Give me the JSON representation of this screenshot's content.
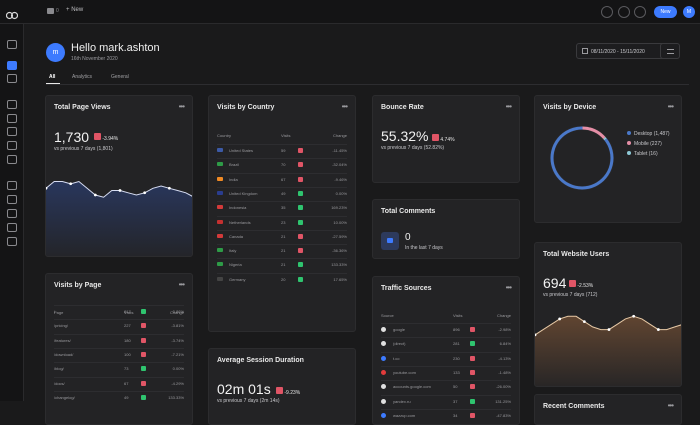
{
  "topbar": {
    "new_label": "New",
    "new_button": "New",
    "user_initial": "M"
  },
  "header": {
    "avatar_initial": "m",
    "greeting": "Hello mark.ashton",
    "date": "16th November 2020",
    "tabs": [
      "All",
      "Analytics",
      "General"
    ],
    "date_range": "08/11/2020 - 15/11/2020"
  },
  "page_views": {
    "title": "Total Page Views",
    "value": "1,730",
    "change": "-3.94%",
    "sub": "vs previous 7 days (1,801)"
  },
  "visits_country": {
    "title": "Visits by Country",
    "headers": [
      "Country",
      "Visits",
      "Change"
    ],
    "rows": [
      {
        "name": "United States",
        "visits": "59",
        "change": "-11.45%",
        "up": false,
        "flag": "#3c5aa6"
      },
      {
        "name": "Brazil",
        "visits": "70",
        "change": "-32.04%",
        "up": false,
        "flag": "#2e9b47"
      },
      {
        "name": "India",
        "visits": "67",
        "change": "-9.46%",
        "up": false,
        "flag": "#f08a24"
      },
      {
        "name": "United Kingdom",
        "visits": "49",
        "change": "0.00%",
        "up": true,
        "flag": "#2a3d8f"
      },
      {
        "name": "Indonesia",
        "visits": "35",
        "change": "169.23%",
        "up": true,
        "flag": "#d33a3a"
      },
      {
        "name": "Netherlands",
        "visits": "23",
        "change": "10.00%",
        "up": true,
        "flag": "#c43030"
      },
      {
        "name": "Canada",
        "visits": "21",
        "change": "-27.59%",
        "up": false,
        "flag": "#d33a3a"
      },
      {
        "name": "Italy",
        "visits": "21",
        "change": "-36.36%",
        "up": false,
        "flag": "#2e9b47"
      },
      {
        "name": "Nigeria",
        "visits": "21",
        "change": "133.33%",
        "up": true,
        "flag": "#2e9b47"
      },
      {
        "name": "Germany",
        "visits": "20",
        "change": "17.65%",
        "up": true,
        "flag": "#444"
      }
    ]
  },
  "bounce": {
    "title": "Bounce Rate",
    "value": "55.32%",
    "change": "4.74%",
    "sub": "vs previous 7 days (52.82%)"
  },
  "comments": {
    "title": "Total Comments",
    "value": "0",
    "sub": "In the last 7 days"
  },
  "traffic": {
    "title": "Traffic Sources",
    "headers": [
      "Source",
      "Visits",
      "Change"
    ],
    "rows": [
      {
        "name": "google",
        "visits": "896",
        "change": "-2.98%",
        "up": false,
        "dot": "#e0e0e0"
      },
      {
        "name": "(direct)",
        "visits": "281",
        "change": "6.84%",
        "up": true,
        "dot": "#e0e0e0"
      },
      {
        "name": "t.co",
        "visits": "230",
        "change": "-4.13%",
        "up": false,
        "dot": "#3d7bff"
      },
      {
        "name": "youtube.com",
        "visits": "133",
        "change": "-1.48%",
        "up": false,
        "dot": "#e23b3b"
      },
      {
        "name": "accounts.google.com",
        "visits": "50",
        "change": "-26.00%",
        "up": false,
        "dot": "#e0e0e0"
      },
      {
        "name": "yandex.ru",
        "visits": "37",
        "change": "131.25%",
        "up": true,
        "dot": "#e0e0e0"
      },
      {
        "name": "wazzup.com",
        "visits": "34",
        "change": "-47.83%",
        "up": false,
        "dot": "#3d7bff"
      }
    ]
  },
  "device": {
    "title": "Visits by Device",
    "legend": [
      {
        "label": "Desktop (1,487)",
        "value": 1487,
        "color": "#4a78c9"
      },
      {
        "label": "Mobile (227)",
        "value": 227,
        "color": "#e58ea6"
      },
      {
        "label": "Tablet (16)",
        "value": 16,
        "color": "#8ec9d6"
      }
    ]
  },
  "users": {
    "title": "Total Website Users",
    "value": "694",
    "change": "-2.53%",
    "sub": "vs previous 7 days (712)"
  },
  "visits_page": {
    "title": "Visits by Page",
    "headers": [
      "Page",
      "Visits",
      "Change"
    ],
    "rows": [
      {
        "name": "/",
        "visits": "817",
        "change": "0.86%",
        "up": true
      },
      {
        "name": "/pricing/",
        "visits": "227",
        "change": "-3.81%",
        "up": false
      },
      {
        "name": "/features/",
        "visits": "180",
        "change": "-3.74%",
        "up": false
      },
      {
        "name": "/download/",
        "visits": "100",
        "change": "-7.21%",
        "up": false
      },
      {
        "name": "/blog/",
        "visits": "73",
        "change": "0.00%",
        "up": true
      },
      {
        "name": "/docs/",
        "visits": "67",
        "change": "-4.29%",
        "up": false
      },
      {
        "name": "/changelog/",
        "visits": "49",
        "change": "133.33%",
        "up": true
      }
    ]
  },
  "session": {
    "title": "Average Session Duration",
    "value": "02m 01s",
    "change": "-9.23%",
    "sub": "vs previous 7 days (2m 14s)"
  },
  "recent": {
    "title": "Recent Comments"
  },
  "chart_data": [
    {
      "type": "area",
      "series": [
        {
          "values": [
            31,
            34,
            34,
            33,
            34,
            31,
            28,
            27,
            30,
            30,
            29,
            28,
            29,
            31,
            32,
            31,
            30,
            29,
            27
          ]
        }
      ]
    },
    {
      "type": "area",
      "series": [
        {
          "values": [
            20,
            22,
            24,
            26,
            27,
            27,
            25,
            23,
            22,
            22,
            24,
            26,
            27,
            26,
            24,
            22,
            22,
            23,
            24
          ]
        }
      ]
    }
  ],
  "colors": {
    "accent": "#3d7bff",
    "up": "#2fc46f",
    "down": "#e05566",
    "area1": "#2a3a66",
    "area2": "#6b4b33"
  }
}
